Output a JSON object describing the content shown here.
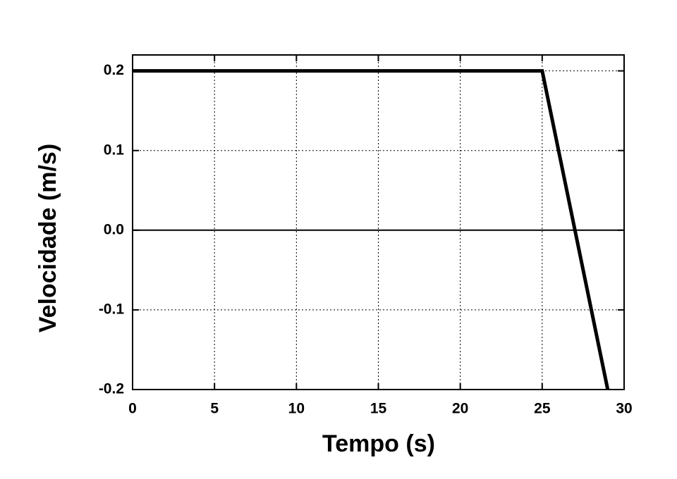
{
  "chart_data": {
    "type": "line",
    "x_label": "Tempo (s)",
    "y_label": "Velocidade (m/s)",
    "x": [
      0,
      25,
      29
    ],
    "series": [
      {
        "values": [
          0.2,
          0.2,
          -0.2
        ],
        "color": "#000000"
      }
    ],
    "xlim": [
      0,
      30
    ],
    "xticks": [
      0,
      5,
      10,
      15,
      20,
      25,
      30
    ],
    "ylim": [
      -0.2,
      0.22
    ],
    "yticks": [
      -0.2,
      -0.1,
      {
        "value": 0,
        "label": "0.0"
      },
      0.1,
      0.2
    ],
    "grid": true,
    "zero_line": true
  }
}
